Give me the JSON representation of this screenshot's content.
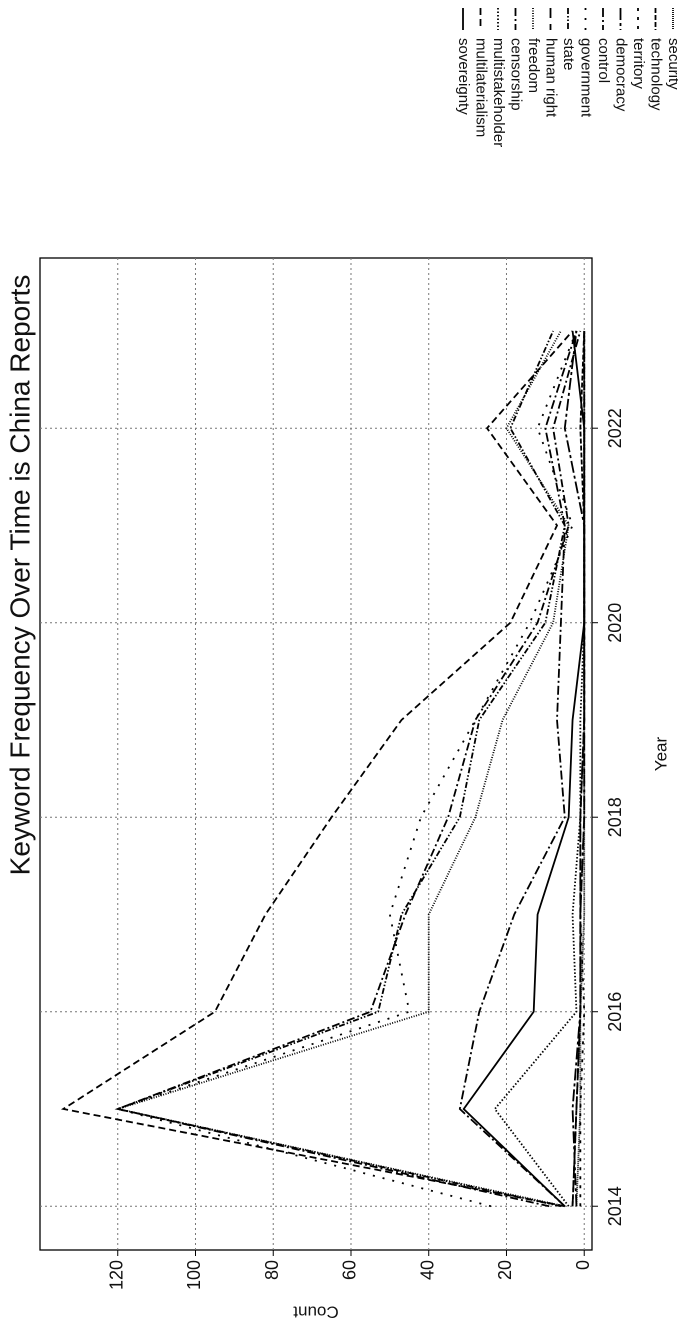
{
  "chart_data": {
    "type": "line",
    "title": "Keyword Frequency Over Time is China Reports",
    "x_label": "Year",
    "y_label": "Count",
    "x": [
      2014,
      2015,
      2016,
      2017,
      2018,
      2019,
      2020,
      2021,
      2022,
      2023
    ],
    "xlim": [
      2013.55,
      2023.75
    ],
    "xticks": [
      2014,
      2016,
      2018,
      2020,
      2022
    ],
    "ylim": [
      -2,
      140
    ],
    "yticks": [
      0,
      20,
      40,
      60,
      80,
      100,
      120
    ],
    "grid": true,
    "legend": "upper right",
    "series": [
      {
        "name": "sovereignty",
        "color": "#000000",
        "dash": "none",
        "values": [
          5,
          31,
          13,
          12,
          4,
          3,
          0,
          0,
          0,
          3
        ]
      },
      {
        "name": "multilaterialism",
        "color": "#000000",
        "dash": "7 4",
        "values": [
          5,
          134,
          95,
          82,
          65,
          47,
          19,
          7,
          25,
          3
        ]
      },
      {
        "name": "multistakeholder",
        "color": "#000000",
        "dash": "1.5 2",
        "values": [
          4,
          23,
          2,
          3,
          1,
          1,
          0,
          0,
          0,
          0
        ]
      },
      {
        "name": "censorship",
        "color": "#000000",
        "dash": "8 3 2 3",
        "values": [
          9,
          120,
          55,
          46,
          35,
          28,
          12,
          4,
          8,
          1
        ]
      },
      {
        "name": "freedom",
        "color": "#000000",
        "dash": "1 1.5",
        "values": [
          5,
          120,
          40,
          40,
          28,
          21,
          8,
          4,
          20,
          6
        ]
      },
      {
        "name": "human right",
        "color": "#000000",
        "dash": "10 6",
        "values": [
          3,
          2,
          1,
          1,
          1,
          0,
          0,
          0,
          0,
          0
        ]
      },
      {
        "name": "state",
        "color": "#000000",
        "dash": "6 2 1.5 2 1.5 2",
        "values": [
          6,
          120,
          53,
          47,
          32,
          27,
          10,
          5,
          19,
          8
        ]
      },
      {
        "name": "government",
        "color": "#000000",
        "dash": "2 8",
        "values": [
          24,
          120,
          45,
          50,
          42,
          28,
          14,
          3,
          12,
          2
        ]
      },
      {
        "name": "control",
        "color": "#000000",
        "dash": "9 3 2 3",
        "values": [
          5,
          32,
          27,
          18,
          5,
          7,
          6,
          5,
          10,
          2
        ]
      },
      {
        "name": "democracy",
        "color": "#000000",
        "dash": "12 3 3 3",
        "values": [
          2,
          3,
          1,
          1,
          0,
          0,
          0,
          0,
          5,
          2
        ]
      },
      {
        "name": "territory",
        "color": "#000000",
        "dash": "3 6",
        "values": [
          1,
          1,
          0,
          1,
          0,
          0,
          0,
          0,
          0,
          0
        ]
      },
      {
        "name": "technology",
        "color": "#000000",
        "dash": "5 2",
        "values": [
          3,
          2,
          1,
          1,
          1,
          0,
          0,
          0,
          1,
          0
        ]
      },
      {
        "name": "security",
        "color": "#000000",
        "dash": "1 1",
        "values": [
          2,
          1,
          1,
          0,
          0,
          0,
          0,
          0,
          0,
          0
        ]
      }
    ]
  }
}
